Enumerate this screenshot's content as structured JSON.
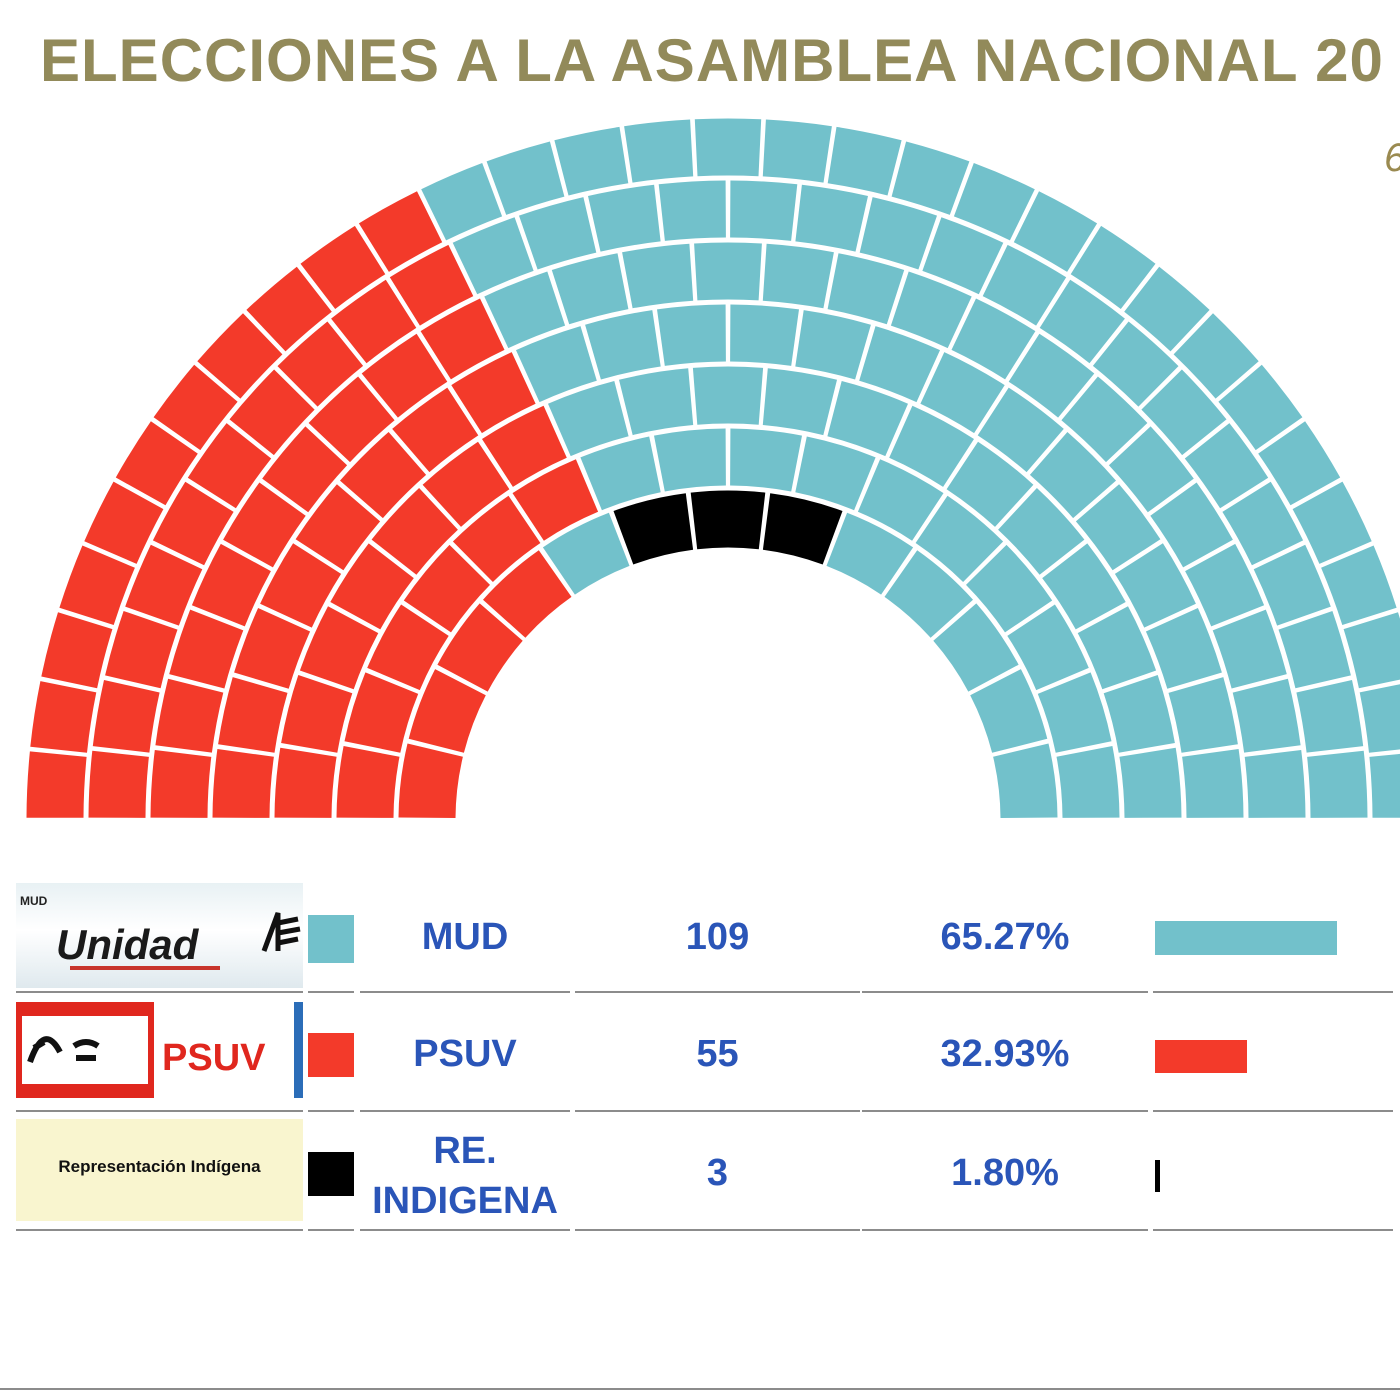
{
  "title": "ELECCIONES A LA ASAMBLEA NACIONAL 20",
  "corner_note": "6",
  "colors": {
    "mud": "#72c1cb",
    "psuv": "#f33a2a",
    "indigena": "#000000",
    "title": "#928a5a",
    "text": "#2a55b8"
  },
  "chart_data": {
    "type": "hemicycle",
    "title": "ELECCIONES A LA ASAMBLEA NACIONAL 20",
    "total_seats": 167,
    "series": [
      {
        "name": "MUD",
        "seats": 109,
        "percent": 65.27,
        "color": "#72c1cb"
      },
      {
        "name": "PSUV",
        "seats": 55,
        "percent": 32.93,
        "color": "#f33a2a"
      },
      {
        "name": "RE. INDIGENA",
        "seats": 3,
        "percent": 1.8,
        "color": "#000000"
      }
    ]
  },
  "legend": [
    {
      "party": "MUD",
      "seats": "109",
      "percent": "65.27%",
      "logo_text": "Unidad",
      "logo_small": "MUD"
    },
    {
      "party": "PSUV",
      "seats": "55",
      "percent": "32.93%",
      "logo_text": "PSUV"
    },
    {
      "party": "RE. INDIGENA",
      "seats": "3",
      "percent": "1.80%",
      "logo_text": "Representación Indígena"
    }
  ]
}
